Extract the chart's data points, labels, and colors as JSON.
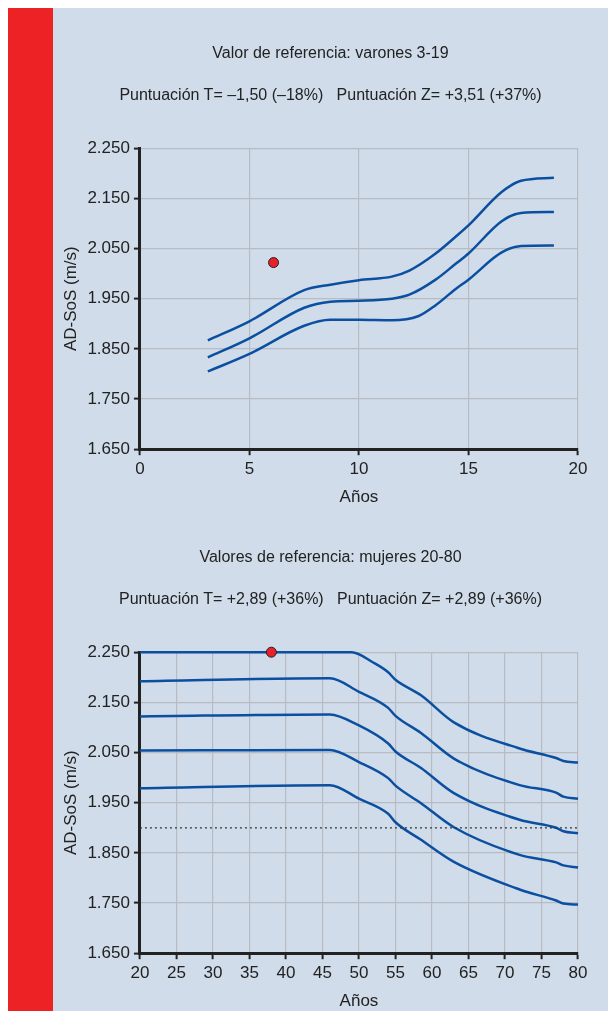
{
  "chart_data": [
    {
      "type": "line",
      "title": "Valor de referencia: varones 3-19",
      "subtitle": "Puntuación T= –1,50 (–18%)   Puntuación Z= +3,51 (+37%)",
      "xlabel": "Años",
      "ylabel": "AD-SoS (m/s)",
      "xlim": [
        0,
        20
      ],
      "xticks": [
        0,
        5,
        10,
        15,
        20
      ],
      "ylim": [
        1650,
        2250
      ],
      "yticks": [
        {
          "value": 1650,
          "label": "1.650"
        },
        {
          "value": 1750,
          "label": "1.750"
        },
        {
          "value": 1850,
          "label": "1.850"
        },
        {
          "value": 1950,
          "label": "1.950"
        },
        {
          "value": 2050,
          "label": "2.050"
        },
        {
          "value": 2150,
          "label": "2.150"
        },
        {
          "value": 2250,
          "label": "2.250"
        }
      ],
      "grid": true,
      "series": [
        {
          "type": "line",
          "color": "#0b4fa0",
          "marker": "none",
          "x": [
            3.1,
            5,
            7.5,
            8.7,
            10,
            11.5,
            12.3,
            13.5,
            14.4,
            15,
            16.5,
            17.4,
            18.9
          ],
          "values": [
            1867,
            1905,
            1967,
            1978,
            1987,
            1994,
            2006,
            2040,
            2073,
            2096,
            2162,
            2185,
            2191
          ]
        },
        {
          "type": "line",
          "color": "#0b4fa0",
          "marker": "none",
          "x": [
            3.1,
            5,
            7.5,
            8.7,
            10,
            11.5,
            12.3,
            13.5,
            14.4,
            15,
            16.5,
            17.4,
            18.9
          ],
          "values": [
            1833,
            1871,
            1932,
            1944,
            1946,
            1950,
            1958,
            1988,
            2019,
            2040,
            2104,
            2121,
            2123
          ]
        },
        {
          "type": "line",
          "color": "#0b4fa0",
          "marker": "none",
          "x": [
            3.1,
            5,
            7.5,
            8.7,
            10,
            11.5,
            12.7,
            13.5,
            14.4,
            15,
            16.5,
            17.4,
            18.9
          ],
          "values": [
            1805,
            1840,
            1896,
            1908,
            1908,
            1907,
            1915,
            1937,
            1969,
            1988,
            2042,
            2055,
            2056
          ]
        },
        {
          "type": "scatter",
          "color": "#e8202a",
          "marker": "circle",
          "x": [
            6.1
          ],
          "values": [
            2022
          ]
        }
      ]
    },
    {
      "type": "line",
      "title": "Valores de referencia: mujeres 20-80",
      "subtitle": "Puntuación T= +2,89 (+36%)   Puntuación Z= +2,89 (+36%)",
      "xlabel": "Años",
      "ylabel": "AD-SoS (m/s)",
      "xlim": [
        20,
        80
      ],
      "xticks": [
        20,
        25,
        30,
        35,
        40,
        45,
        50,
        55,
        60,
        65,
        70,
        75,
        80
      ],
      "ylim": [
        1650,
        2250
      ],
      "yticks": [
        {
          "value": 1650,
          "label": "1.650"
        },
        {
          "value": 1750,
          "label": "1.750"
        },
        {
          "value": 1850,
          "label": "1.850"
        },
        {
          "value": 1950,
          "label": "1.950"
        },
        {
          "value": 2050,
          "label": "2.050"
        },
        {
          "value": 2150,
          "label": "2.150"
        },
        {
          "value": 2250,
          "label": "2.250"
        }
      ],
      "grid": true,
      "ref_lines": [
        {
          "axis": "y",
          "value": 1900,
          "color": "#333333",
          "line_style": "dotted"
        }
      ],
      "series": [
        {
          "type": "line",
          "color": "#0b4fa0",
          "marker": "none",
          "x": [
            20,
            49,
            52,
            54,
            55,
            58.5,
            63,
            72,
            77,
            78,
            80
          ],
          "values": [
            2250,
            2250,
            2229,
            2210,
            2195,
            2164,
            2110,
            2058,
            2039,
            2033,
            2030
          ]
        },
        {
          "type": "line",
          "color": "#0b4fa0",
          "marker": "none",
          "x": [
            20,
            46,
            50,
            54,
            55,
            58.5,
            63,
            72,
            77,
            78,
            80
          ],
          "values": [
            2192,
            2198,
            2171,
            2139,
            2123,
            2089,
            2038,
            1985,
            1970,
            1962,
            1958
          ]
        },
        {
          "type": "line",
          "color": "#0b4fa0",
          "marker": "none",
          "x": [
            20,
            46,
            50,
            54,
            55,
            58.5,
            63,
            72,
            77,
            78,
            80
          ],
          "values": [
            2122,
            2126,
            2104,
            2068,
            2052,
            2019,
            1969,
            1916,
            1900,
            1893,
            1889
          ]
        },
        {
          "type": "line",
          "color": "#0b4fa0",
          "marker": "none",
          "x": [
            20,
            46,
            50,
            54,
            55,
            58.5,
            63,
            72,
            77,
            78,
            80
          ],
          "values": [
            2054,
            2055,
            2031,
            1999,
            1984,
            1949,
            1901,
            1846,
            1831,
            1825,
            1821
          ]
        },
        {
          "type": "line",
          "color": "#0b4fa0",
          "marker": "none",
          "x": [
            20,
            46,
            50,
            54,
            55,
            58.5,
            63,
            72,
            77,
            78,
            80
          ],
          "values": [
            1979,
            1985,
            1958,
            1928,
            1911,
            1876,
            1832,
            1777,
            1755,
            1749,
            1747
          ]
        },
        {
          "type": "scatter",
          "color": "#e8202a",
          "marker": "circle",
          "x": [
            38
          ],
          "values": [
            2250
          ]
        }
      ]
    }
  ]
}
